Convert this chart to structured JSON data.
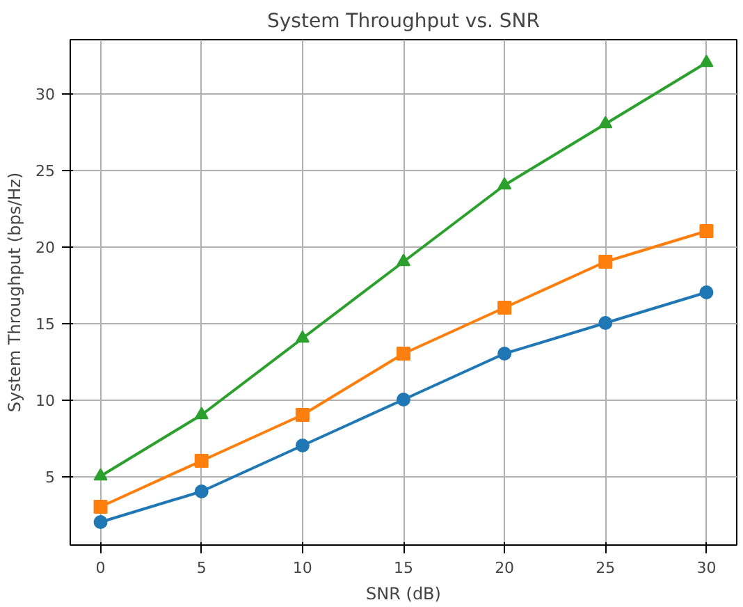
{
  "chart_data": {
    "type": "line",
    "title": "System Throughput vs. SNR",
    "xlabel": "SNR (dB)",
    "ylabel": "System Throughput (bps/Hz)",
    "x": [
      0,
      5,
      10,
      15,
      20,
      25,
      30
    ],
    "series": [
      {
        "color": "#1f77b4",
        "marker": "circle",
        "values": [
          2,
          4,
          7,
          10,
          13,
          15,
          17
        ]
      },
      {
        "color": "#ff7f0e",
        "marker": "square",
        "values": [
          3,
          6,
          9,
          13,
          16,
          19,
          21
        ]
      },
      {
        "color": "#2ca02c",
        "marker": "triangle",
        "values": [
          5,
          9,
          14,
          19,
          24,
          28,
          32
        ]
      }
    ],
    "xlim": [
      -1.5,
      31.5
    ],
    "ylim": [
      0.5,
      33.5
    ],
    "xticks": [
      0,
      5,
      10,
      15,
      20,
      25,
      30
    ],
    "yticks": [
      5,
      10,
      15,
      20,
      25,
      30
    ],
    "grid": true,
    "line_style": "solid"
  }
}
